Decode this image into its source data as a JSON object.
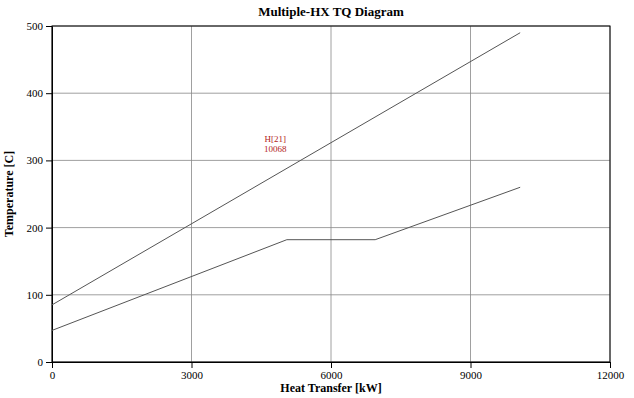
{
  "chart_data": {
    "type": "line",
    "title": "Multiple-HX TQ Diagram",
    "x_label": "Heat Transfer [kW]",
    "y_label": "Temperature [C]",
    "series": [
      {
        "color": "#555555",
        "x": [
          0,
          10068
        ],
        "values": [
          85,
          490
        ]
      },
      {
        "color": "#555555",
        "x": [
          0,
          5050,
          6950,
          10068
        ],
        "values": [
          47,
          182,
          182,
          260
        ]
      }
    ],
    "annotations": [
      "H[21]",
      "10068"
    ],
    "annotation_color": "#b22222",
    "xlim": [
      0,
      12000
    ],
    "xticks": [
      0,
      3000,
      6000,
      9000,
      12000
    ],
    "ylim": [
      0,
      500
    ],
    "yticks": [
      0,
      100,
      200,
      300,
      400,
      500
    ],
    "grid": true
  }
}
